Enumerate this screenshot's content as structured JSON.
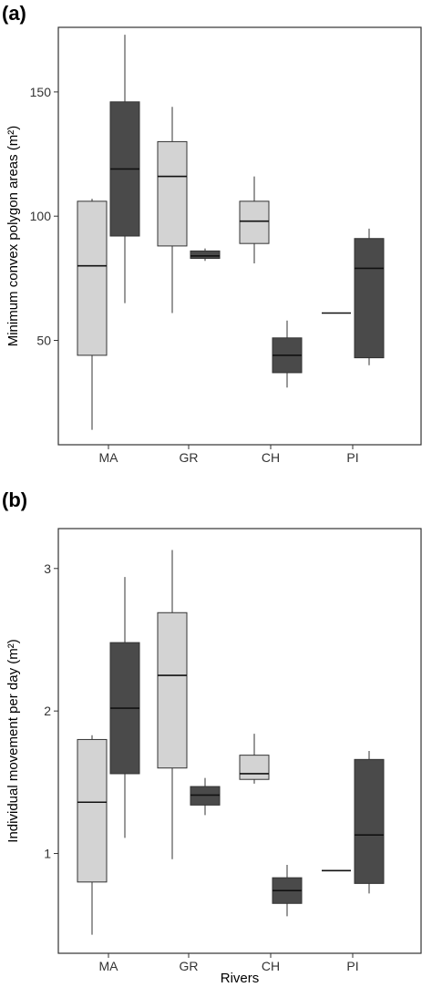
{
  "figure": {
    "panels": [
      "(a)",
      "(b)"
    ]
  },
  "colors": {
    "series_light": "#d3d3d3",
    "series_dark": "#4a4a4a",
    "median": "#111111",
    "frame": "#333333"
  },
  "chart_data": [
    {
      "type": "box",
      "panel_label": "(a)",
      "ylabel": "Minimum convex polygon areas (m²)",
      "xlabel": "",
      "categories": [
        "MA",
        "GR",
        "CH",
        "PI"
      ],
      "yticks": [
        50,
        100,
        150
      ],
      "ylim": [
        8,
        176
      ],
      "grid": false,
      "series": [
        {
          "color": "#d3d3d3",
          "boxes": [
            {
              "category": "MA",
              "min": 14,
              "q1": 44,
              "median": 80,
              "q3": 106,
              "max": 107
            },
            {
              "category": "GR",
              "min": 61,
              "q1": 88,
              "median": 116,
              "q3": 130,
              "max": 144
            },
            {
              "category": "CH",
              "min": 81,
              "q1": 89,
              "median": 98,
              "q3": 106,
              "max": 116
            },
            {
              "category": "PI",
              "min": 61,
              "q1": 61,
              "median": 61,
              "q3": 61,
              "max": 61
            }
          ]
        },
        {
          "color": "#4a4a4a",
          "boxes": [
            {
              "category": "MA",
              "min": 65,
              "q1": 92,
              "median": 119,
              "q3": 146,
              "max": 173
            },
            {
              "category": "GR",
              "min": 82,
              "q1": 83,
              "median": 84,
              "q3": 86,
              "max": 87
            },
            {
              "category": "CH",
              "min": 31,
              "q1": 37,
              "median": 44,
              "q3": 51,
              "max": 58
            },
            {
              "category": "PI",
              "min": 40,
              "q1": 43,
              "median": 79,
              "q3": 91,
              "max": 95
            }
          ]
        }
      ]
    },
    {
      "type": "box",
      "panel_label": "(b)",
      "ylabel": "Individual movement per day (m²)",
      "xlabel": "Rivers",
      "categories": [
        "MA",
        "GR",
        "CH",
        "PI"
      ],
      "yticks": [
        1,
        2,
        3
      ],
      "ylim": [
        0.3,
        3.28
      ],
      "grid": false,
      "series": [
        {
          "color": "#d3d3d3",
          "boxes": [
            {
              "category": "MA",
              "min": 0.43,
              "q1": 0.8,
              "median": 1.36,
              "q3": 1.8,
              "max": 1.83
            },
            {
              "category": "GR",
              "min": 0.96,
              "q1": 1.6,
              "median": 2.25,
              "q3": 2.69,
              "max": 3.13
            },
            {
              "category": "CH",
              "min": 1.49,
              "q1": 1.52,
              "median": 1.56,
              "q3": 1.69,
              "max": 1.84
            },
            {
              "category": "PI",
              "min": 0.88,
              "q1": 0.88,
              "median": 0.88,
              "q3": 0.88,
              "max": 0.88
            }
          ]
        },
        {
          "color": "#4a4a4a",
          "boxes": [
            {
              "category": "MA",
              "min": 1.11,
              "q1": 1.56,
              "median": 2.02,
              "q3": 2.48,
              "max": 2.94
            },
            {
              "category": "GR",
              "min": 1.27,
              "q1": 1.34,
              "median": 1.41,
              "q3": 1.47,
              "max": 1.53
            },
            {
              "category": "CH",
              "min": 0.56,
              "q1": 0.65,
              "median": 0.74,
              "q3": 0.83,
              "max": 0.92
            },
            {
              "category": "PI",
              "min": 0.72,
              "q1": 0.79,
              "median": 1.13,
              "q3": 1.66,
              "max": 1.72
            }
          ]
        }
      ]
    }
  ]
}
